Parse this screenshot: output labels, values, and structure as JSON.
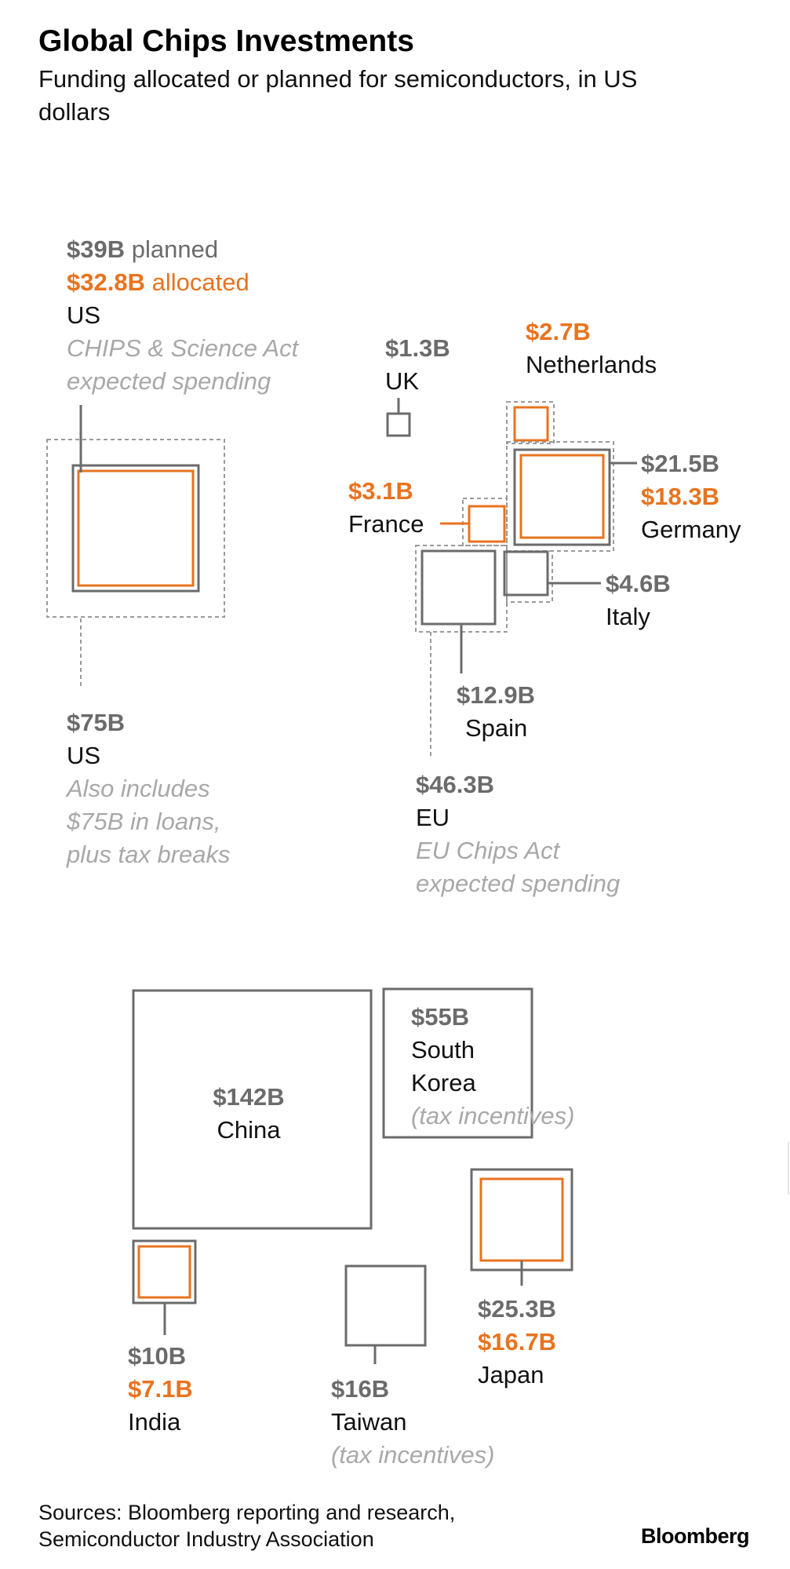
{
  "chart_data": {
    "type": "proportional-area squares",
    "title": "Global Chips Investments",
    "subtitle_line1": "Funding allocated or planned for semiconductors, in US",
    "subtitle_line2": "dollars",
    "units": "billion US dollars",
    "legend": {
      "planned_word": "planned",
      "allocated_word": "allocated"
    },
    "entries": [
      {
        "id": "us_chips",
        "country": "US",
        "planned": 39,
        "allocated": 32.8,
        "planned_label": "$39B",
        "allocated_label": "$32.8B",
        "note_line1": "CHIPS & Science Act",
        "note_line2": "expected spending"
      },
      {
        "id": "us_total",
        "country": "US",
        "planned": 75,
        "planned_label": "$75B",
        "note_line1": "Also includes",
        "note_line2": "$75B in loans,",
        "note_line3": "plus tax breaks"
      },
      {
        "id": "uk",
        "country": "UK",
        "planned": 1.3,
        "planned_label": "$1.3B"
      },
      {
        "id": "netherlands",
        "country": "Netherlands",
        "allocated": 2.7,
        "allocated_label": "$2.7B"
      },
      {
        "id": "germany",
        "country": "Germany",
        "planned": 21.5,
        "allocated": 18.3,
        "planned_label": "$21.5B",
        "allocated_label": "$18.3B"
      },
      {
        "id": "france",
        "country": "France",
        "allocated": 3.1,
        "allocated_label": "$3.1B"
      },
      {
        "id": "italy",
        "country": "Italy",
        "planned": 4.6,
        "planned_label": "$4.6B"
      },
      {
        "id": "spain",
        "country": "Spain",
        "planned": 12.9,
        "planned_label": "$12.9B"
      },
      {
        "id": "eu",
        "country": "EU",
        "planned": 46.3,
        "planned_label": "$46.3B",
        "note_line1": "EU Chips Act",
        "note_line2": "expected spending"
      },
      {
        "id": "china",
        "country": "China",
        "planned": 142,
        "planned_label": "$142B"
      },
      {
        "id": "south_korea",
        "country_line1": "South",
        "country_line2": "Korea",
        "planned": 55,
        "planned_label": "$55B",
        "note_line1": "(tax incentives)"
      },
      {
        "id": "japan",
        "country": "Japan",
        "planned": 25.3,
        "allocated": 16.7,
        "planned_label": "$25.3B",
        "allocated_label": "$16.7B"
      },
      {
        "id": "india",
        "country": "India",
        "planned": 10,
        "allocated": 7.1,
        "planned_label": "$10B",
        "allocated_label": "$7.1B"
      },
      {
        "id": "taiwan",
        "country": "Taiwan",
        "planned": 16,
        "planned_label": "$16B",
        "note_line1": "(tax incentives)"
      }
    ]
  },
  "footer": {
    "source_line1": "Sources: Bloomberg reporting and research,",
    "source_line2": "Semiconductor Industry Association",
    "logo_text": "Bloomberg"
  },
  "colors": {
    "planned": "#6b6b6b",
    "allocated": "#e8731f",
    "note": "#a8a8a8",
    "dashed": "#9a9a9a"
  }
}
